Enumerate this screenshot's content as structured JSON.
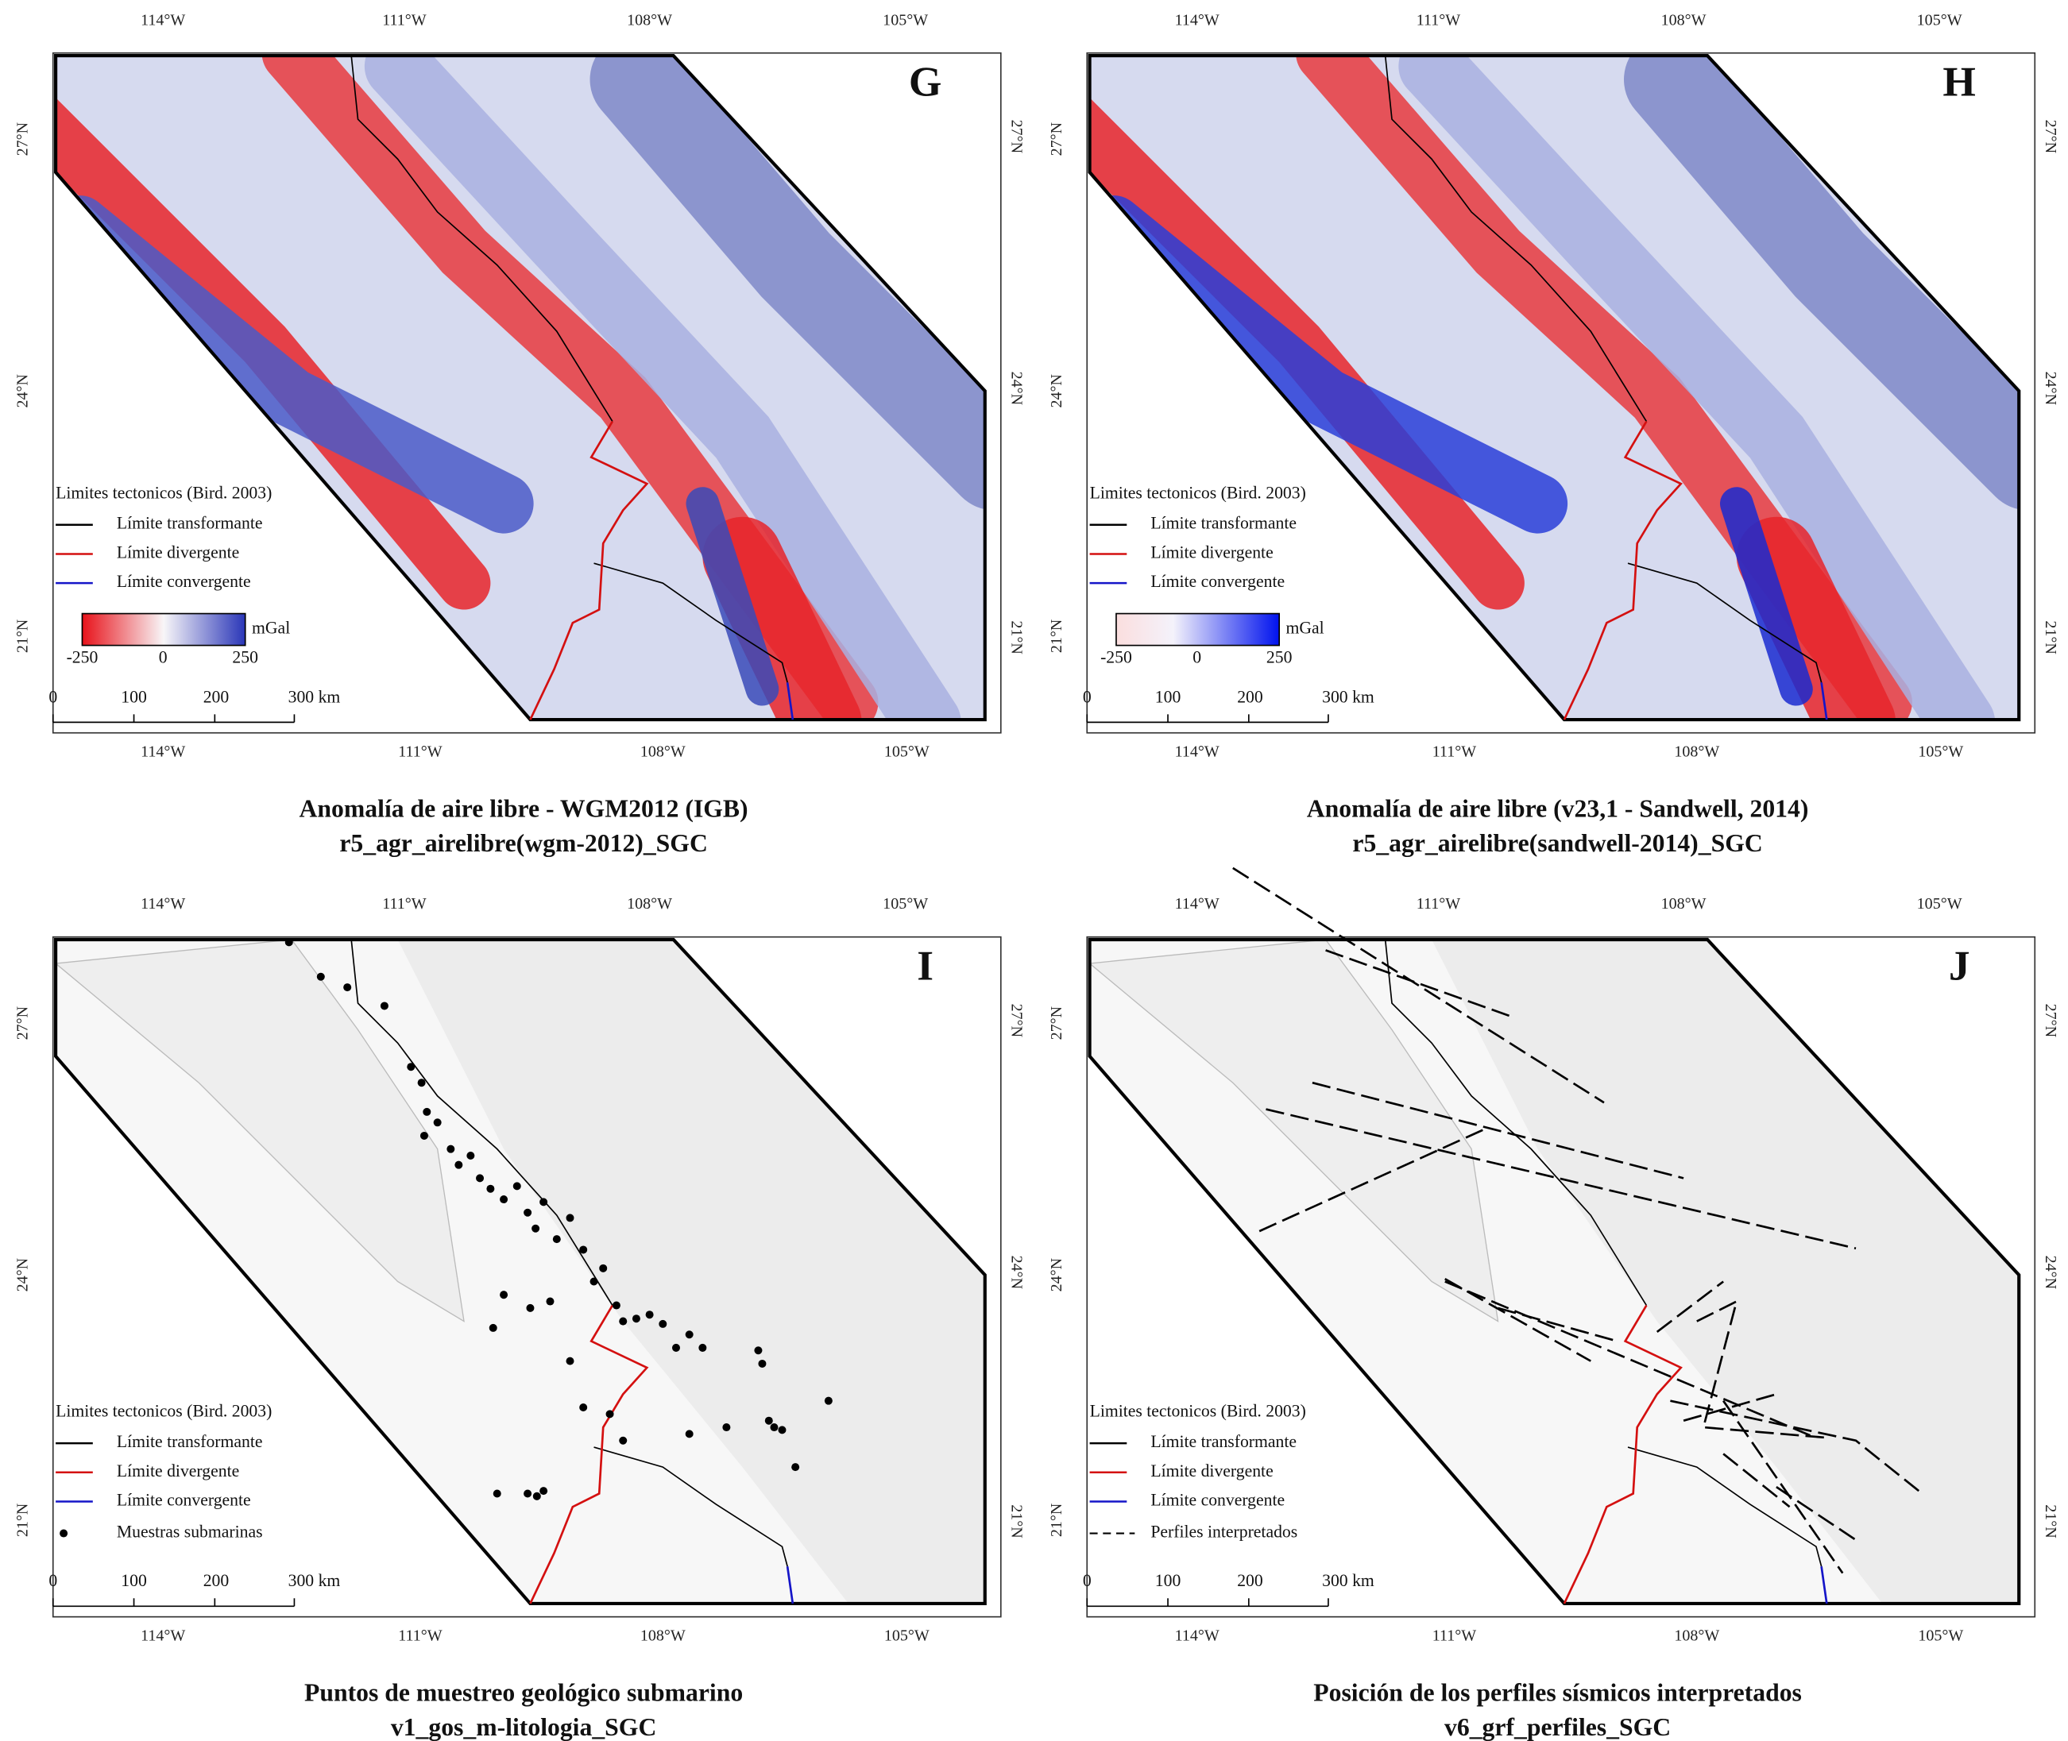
{
  "axes": {
    "lon": [
      "114°W",
      "111°W",
      "108°W",
      "105°W"
    ],
    "lat": [
      "27°N",
      "24°N",
      "21°N"
    ]
  },
  "legend": {
    "heading": "Limites tectonicos (Bird. 2003)",
    "transform": "Límite transformante",
    "divergent": "Límite divergente",
    "convergent": "Límite convergente"
  },
  "scalebar": [
    "0",
    "100",
    "200",
    "300 km"
  ],
  "panels": [
    {
      "letter": "G",
      "title": "Anomalía de aire libre - WGM2012 (IGB)",
      "subtitle": "r5_agr_airelibre(wgm-2012)_SGC",
      "colorbar": {
        "unit": "mGal",
        "labels": [
          "-250",
          "0",
          "250"
        ]
      }
    },
    {
      "letter": "H",
      "title": "Anomalía de aire libre (v23,1 - Sandwell, 2014)",
      "subtitle": "r5_agr_airelibre(sandwell-2014)_SGC",
      "colorbar": {
        "unit": "mGal",
        "labels": [
          "-250",
          "0",
          "250"
        ]
      }
    },
    {
      "letter": "I",
      "title": "Puntos de muestreo geológico submarino",
      "subtitle": "v1_gos_m-litologia_SGC",
      "extra_legend": "Muestras submarinas"
    },
    {
      "letter": "J",
      "title": "Posición de los perfiles sísmicos interpretados",
      "subtitle": "v6_grf_perfiles_SGC",
      "extra_legend": "Perfiles interpretados"
    }
  ]
}
